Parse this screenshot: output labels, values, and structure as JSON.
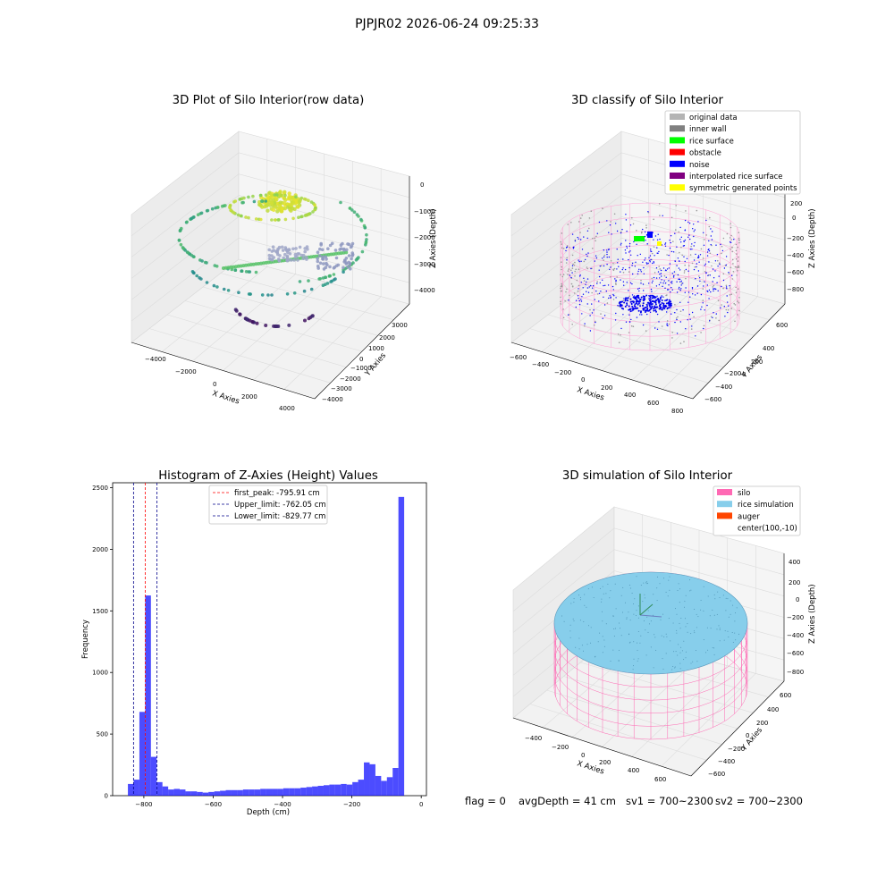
{
  "figure": {
    "suptitle": "PJPJR02 2026-06-24 09:25:33",
    "status": {
      "flag": "flag = 0",
      "avg_depth": "avgDepth = 41 cm",
      "sv1": "sv1 = 700~2300",
      "sv2": "sv2 = 700~2300"
    }
  },
  "panels": {
    "raw": {
      "title": "3D Plot of Silo Interior(row data)",
      "xlabel": "X Axies",
      "ylabel": "Y Axies",
      "zlabel": "Z Axies (Depth)",
      "xticks": [
        "−4000",
        "−2000",
        "0",
        "2000",
        "4000"
      ],
      "yticks": [
        "3000",
        "2000",
        "1000",
        "0",
        "−1000",
        "−2000",
        "−3000",
        "−4000"
      ],
      "zticks": [
        "0",
        "−1000",
        "−2000",
        "−3000",
        "−4000"
      ]
    },
    "classify": {
      "title": "3D classify of Silo Interior",
      "xlabel": "X Axies",
      "ylabel": "Y Axies",
      "zlabel": "Z Axies (Depth)",
      "xticks": [
        "−600",
        "−400",
        "−200",
        "0",
        "200",
        "400",
        "600",
        "800"
      ],
      "yticks": [
        "600",
        "400",
        "200",
        "0",
        "−200",
        "−400",
        "−600"
      ],
      "zticks": [
        "200",
        "0",
        "−200",
        "−400",
        "−600",
        "−800"
      ],
      "legend": [
        {
          "label": "original data",
          "color": "#b4b4b4"
        },
        {
          "label": "inner wall",
          "color": "#808080"
        },
        {
          "label": "rice surface",
          "color": "#00ff00"
        },
        {
          "label": "obstacle",
          "color": "#ff0000"
        },
        {
          "label": "noise",
          "color": "#0000ff"
        },
        {
          "label": "interpolated rice surface",
          "color": "#800080"
        },
        {
          "label": "symmetric generated points",
          "color": "#ffff00"
        }
      ]
    },
    "simulation": {
      "title": "3D simulation of Silo Interior",
      "xlabel": "X Axies",
      "ylabel": "Y Axies",
      "zlabel": "Z Axies (Depth)",
      "xticks": [
        "−400",
        "−200",
        "0",
        "200",
        "400",
        "600"
      ],
      "yticks": [
        "600",
        "400",
        "200",
        "0",
        "−200",
        "−400",
        "−600"
      ],
      "zticks": [
        "400",
        "200",
        "0",
        "−200",
        "−400",
        "−600",
        "−800"
      ],
      "legend": [
        {
          "label": "silo",
          "color": "#ff69b4"
        },
        {
          "label": "rice simulation",
          "color": "#87ceeb"
        },
        {
          "label": "auger",
          "color": "#ff4500"
        },
        {
          "label": "center(100,-10)",
          "color": null
        }
      ]
    }
  },
  "chart_data": [
    {
      "type": "histogram",
      "title": "Histogram of Z-Axies (Height) Values",
      "xlabel": "Depth (cm)",
      "ylabel": "Frequency",
      "xlim": [
        -890,
        15
      ],
      "ylim": [
        0,
        2540
      ],
      "xticks": [
        -800,
        -600,
        -400,
        -200,
        0
      ],
      "xtick_labels": [
        "−800",
        "−600",
        "−400",
        "−200",
        "0"
      ],
      "yticks": [
        0,
        500,
        1000,
        1500,
        2000,
        2500
      ],
      "bin_width": 16.6,
      "bin_start": -846,
      "bar_color": "#0000ff",
      "counts": [
        95,
        130,
        680,
        1625,
        315,
        110,
        75,
        50,
        55,
        50,
        35,
        35,
        30,
        25,
        30,
        35,
        40,
        45,
        45,
        45,
        50,
        50,
        50,
        55,
        55,
        55,
        55,
        60,
        60,
        60,
        65,
        70,
        75,
        80,
        85,
        90,
        90,
        95,
        90,
        110,
        130,
        270,
        255,
        160,
        120,
        150,
        225,
        2425
      ],
      "vlines": [
        {
          "label": "first_peak: -795.91 cm",
          "x": -795.91,
          "color": "#ff0000"
        },
        {
          "label": "Upper_limit: -762.05 cm",
          "x": -762.05,
          "color": "#00008b"
        },
        {
          "label": "Lower_limit: -829.77 cm",
          "x": -829.77,
          "color": "#00008b"
        }
      ]
    }
  ]
}
